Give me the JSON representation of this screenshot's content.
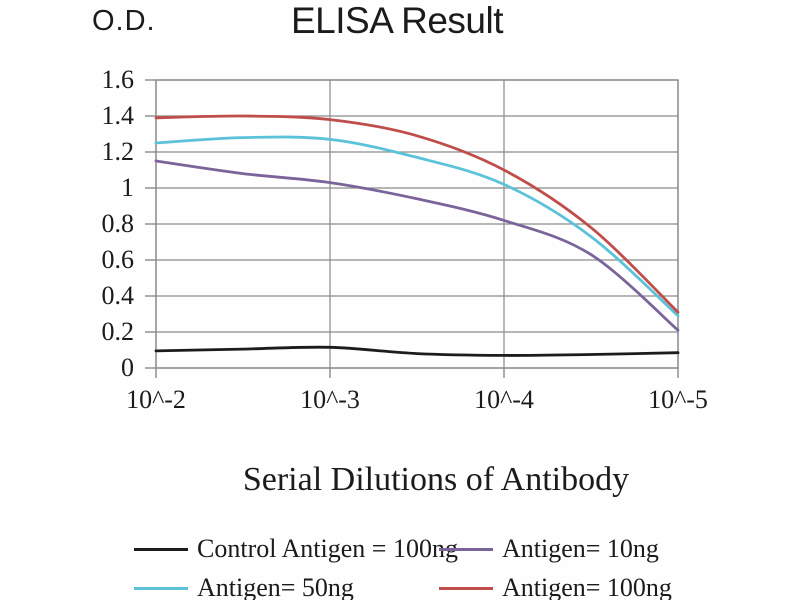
{
  "window": {
    "background": "#fefefe"
  },
  "chart_data": {
    "type": "line",
    "title": "ELISA Result",
    "y_axis_corner_label": "O.D.",
    "xlabel": "Serial Dilutions of Antibody",
    "ylabel": "O.D.",
    "x_scale": "log10 antibody dilution",
    "x_tick_labels": [
      "10^-2",
      "10^-3",
      "10^-4",
      "10^-5"
    ],
    "x_tick_exponents": [
      -2,
      -3,
      -4,
      -5
    ],
    "y_tick_labels": [
      "0",
      "0.2",
      "0.4",
      "0.6",
      "0.8",
      "1",
      "1.2",
      "1.4",
      "1.6"
    ],
    "y_ticks": [
      0,
      0.2,
      0.4,
      0.6,
      0.8,
      1.0,
      1.2,
      1.4,
      1.6
    ],
    "ylim": [
      0,
      1.6
    ],
    "grid": true,
    "legend_position": "bottom",
    "axis_color": "#8a8a8a",
    "x": [
      -2,
      -2.5,
      -3,
      -3.5,
      -4,
      -4.5,
      -5
    ],
    "series": [
      {
        "name": "Control Antigen = 100ng",
        "color": "#1c1c1c",
        "values": [
          0.095,
          0.105,
          0.115,
          0.08,
          0.07,
          0.075,
          0.085
        ]
      },
      {
        "name": "Antigen= 10ng",
        "color": "#7a649a",
        "values": [
          1.15,
          1.08,
          1.03,
          0.94,
          0.82,
          0.63,
          0.21
        ]
      },
      {
        "name": "Antigen= 50ng",
        "color": "#5bc2d9",
        "values": [
          1.25,
          1.28,
          1.27,
          1.17,
          1.02,
          0.73,
          0.29
        ]
      },
      {
        "name": "Antigen= 100ng",
        "color": "#bf4e4b",
        "values": [
          1.39,
          1.4,
          1.38,
          1.29,
          1.1,
          0.78,
          0.31
        ]
      }
    ]
  }
}
